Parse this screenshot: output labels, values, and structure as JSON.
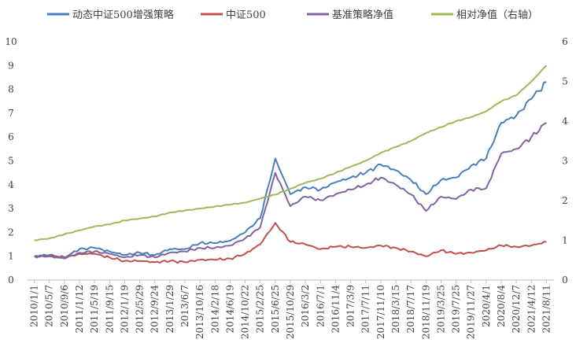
{
  "chart_data": {
    "type": "line",
    "title": "",
    "xlabel": "",
    "ylabel": "",
    "ylim": [
      0,
      10
    ],
    "y2lim": [
      0,
      6
    ],
    "yticks": [
      "0",
      "1",
      "2",
      "3",
      "4",
      "5",
      "6",
      "7",
      "8",
      "9",
      "10"
    ],
    "y2ticks": [
      "0",
      "1",
      "2",
      "3",
      "4",
      "5",
      "6"
    ],
    "legend_position": "top",
    "grid": false,
    "categories": [
      "2010/1/1",
      "2010/5/7",
      "2010/9/6",
      "2011/1/12",
      "2011/5/19",
      "2011/9/15",
      "2012/1/19",
      "2012/5/29",
      "2012/9/24",
      "2013/1/29",
      "2013/6/7",
      "2013/10/16",
      "2014/2/18",
      "2014/6/19",
      "2014/10/22",
      "2015/2/25",
      "2015/6/25",
      "2015/10/29",
      "2016/3/2",
      "2016/7/1",
      "2016/11/4",
      "2017/3/9",
      "2017/7/11",
      "2017/11/10",
      "2018/3/15",
      "2018/7/17",
      "2018/11/19",
      "2019/3/25",
      "2019/7/25",
      "2019/11/27",
      "2020/4/1",
      "2020/8/4",
      "2020/12/7",
      "2021/4/12",
      "2021/8/11"
    ],
    "series": [
      {
        "name": "动态中证500增强策略",
        "axis": "left",
        "color": "#4a7ebb",
        "values": [
          1.0,
          1.05,
          0.95,
          1.3,
          1.35,
          1.2,
          1.05,
          1.15,
          1.05,
          1.3,
          1.3,
          1.55,
          1.55,
          1.65,
          2.0,
          2.6,
          5.1,
          3.6,
          3.9,
          3.8,
          4.1,
          4.3,
          4.5,
          4.85,
          4.6,
          4.2,
          3.6,
          4.2,
          4.3,
          4.8,
          5.1,
          6.6,
          6.9,
          7.6,
          8.3
        ]
      },
      {
        "name": "中证500",
        "axis": "left",
        "color": "#c0504d",
        "values": [
          1.0,
          1.0,
          0.95,
          1.1,
          1.1,
          0.95,
          0.8,
          0.8,
          0.75,
          0.8,
          0.75,
          0.85,
          0.85,
          0.9,
          1.1,
          1.5,
          2.4,
          1.6,
          1.5,
          1.3,
          1.4,
          1.4,
          1.35,
          1.45,
          1.35,
          1.2,
          1.0,
          1.25,
          1.1,
          1.15,
          1.25,
          1.45,
          1.4,
          1.45,
          1.6
        ]
      },
      {
        "name": "基准策略净值",
        "axis": "left",
        "color": "#8064a2",
        "values": [
          1.0,
          1.0,
          0.9,
          1.15,
          1.2,
          1.1,
          0.95,
          1.05,
          0.95,
          1.15,
          1.2,
          1.35,
          1.35,
          1.45,
          1.75,
          2.2,
          4.5,
          3.1,
          3.5,
          3.35,
          3.6,
          3.8,
          4.0,
          4.3,
          4.0,
          3.6,
          2.9,
          3.5,
          3.4,
          3.8,
          3.85,
          5.3,
          5.5,
          6.0,
          6.6
        ]
      },
      {
        "name": "相对净值（右轴）",
        "axis": "right",
        "color": "#9bbb59",
        "values": [
          1.0,
          1.05,
          1.15,
          1.25,
          1.35,
          1.4,
          1.5,
          1.55,
          1.6,
          1.7,
          1.75,
          1.8,
          1.85,
          1.9,
          1.95,
          2.05,
          2.15,
          2.3,
          2.45,
          2.55,
          2.7,
          2.85,
          3.0,
          3.2,
          3.35,
          3.5,
          3.7,
          3.85,
          4.0,
          4.1,
          4.25,
          4.5,
          4.65,
          5.0,
          5.4
        ]
      }
    ]
  }
}
